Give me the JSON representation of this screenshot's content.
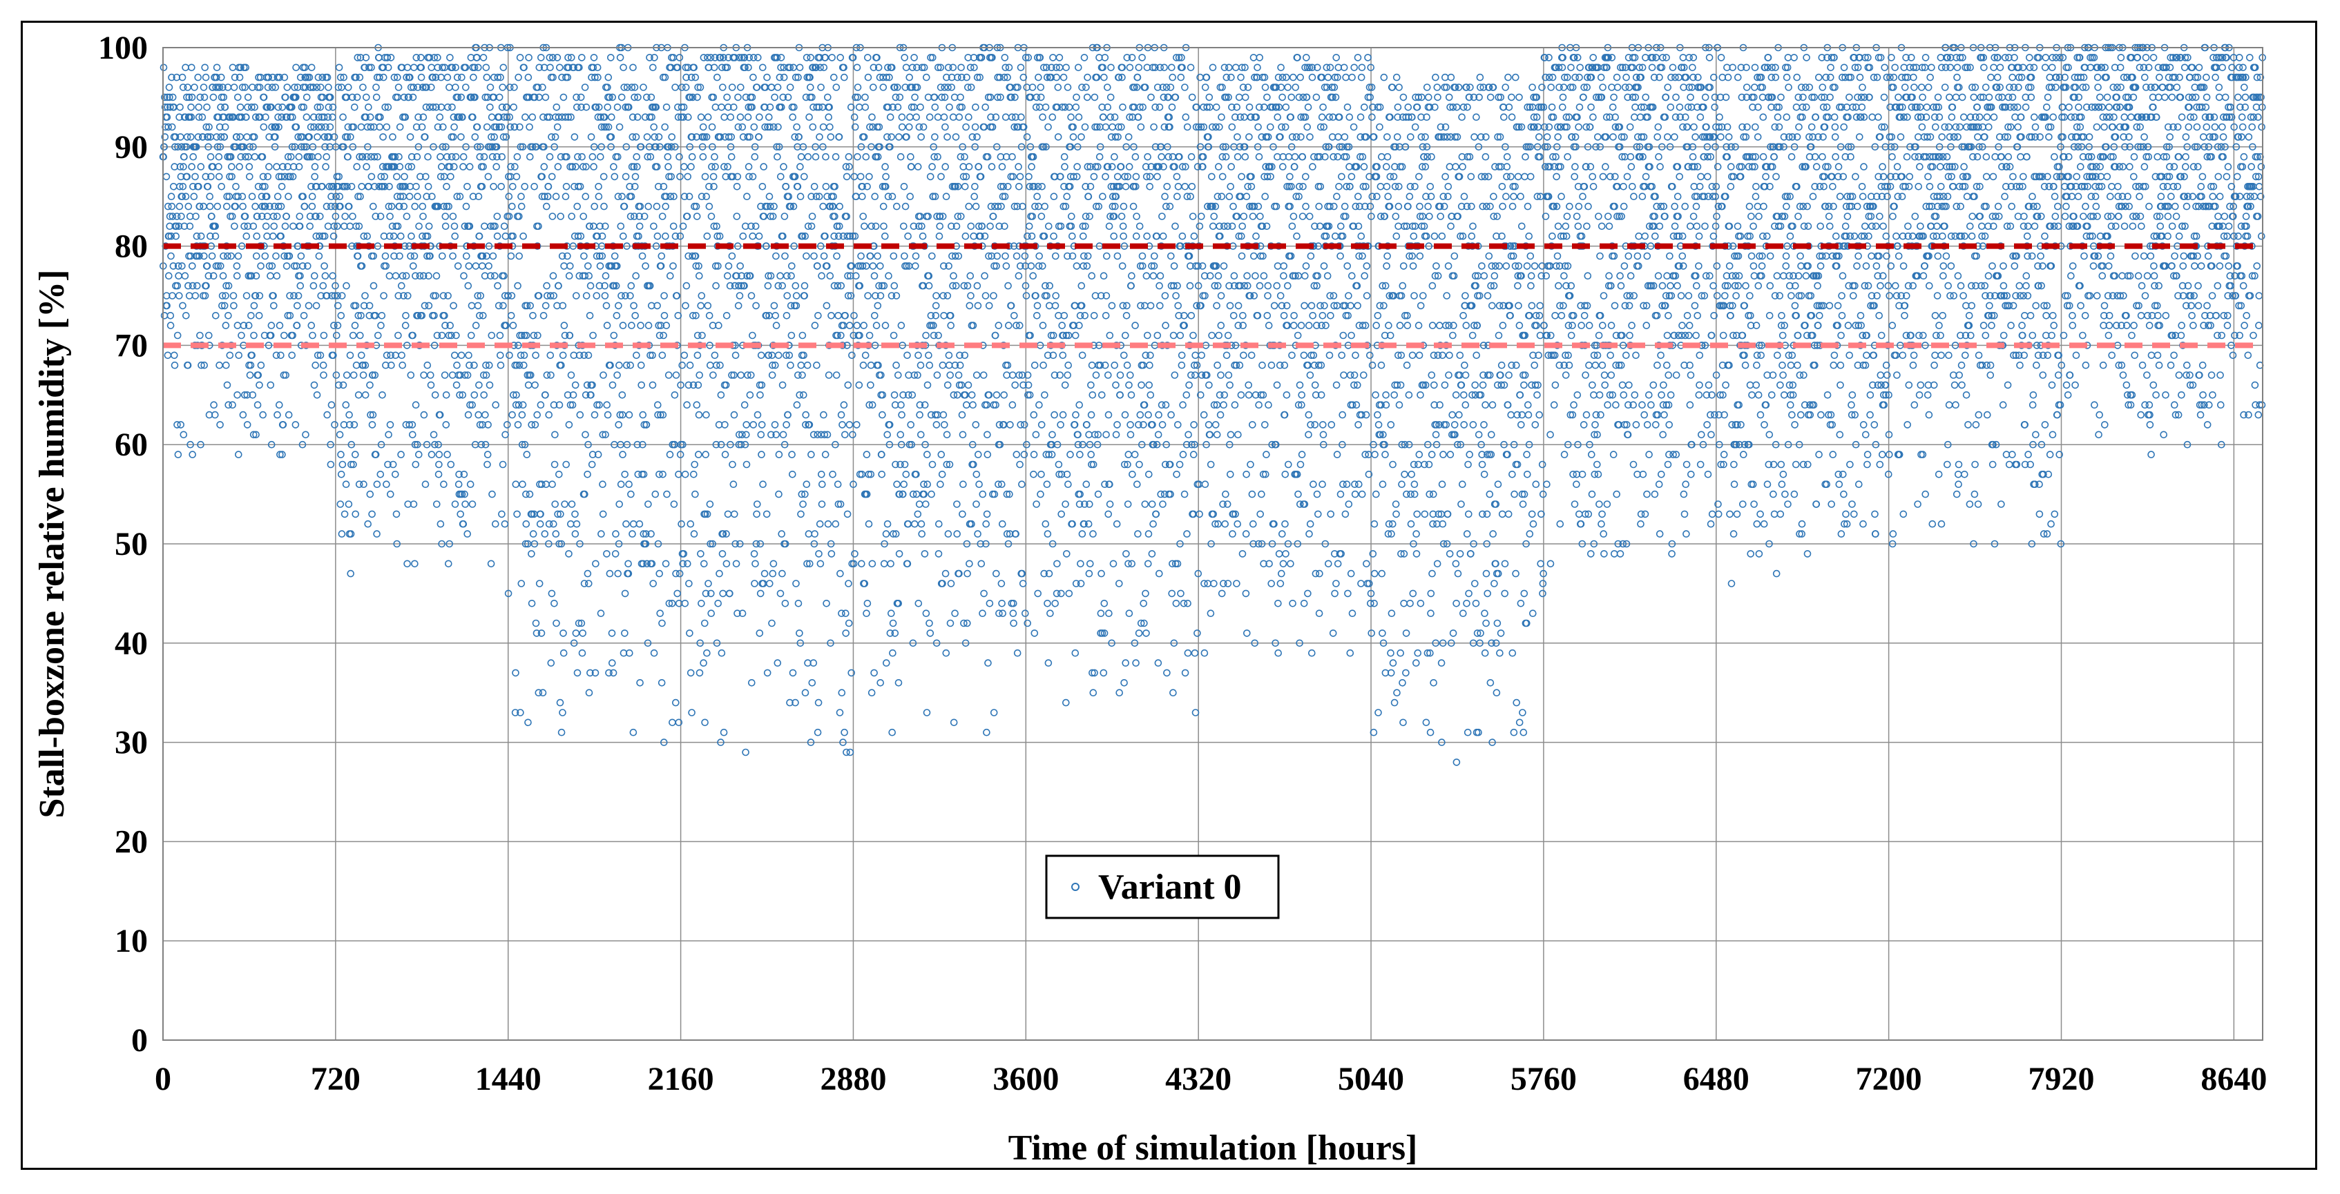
{
  "chart_data": {
    "type": "scatter",
    "xlabel": "Time of simulation [hours]",
    "ylabel": "Stall-boxzone relative humidity [%]",
    "xlim": [
      0,
      8760
    ],
    "ylim": [
      0,
      100
    ],
    "x_ticks": [
      "0",
      "720",
      "1440",
      "2160",
      "2880",
      "3600",
      "4320",
      "5040",
      "5760",
      "6480",
      "7200",
      "7920",
      "8640"
    ],
    "y_ticks": [
      "0",
      "10",
      "20",
      "30",
      "40",
      "50",
      "60",
      "70",
      "80",
      "90",
      "100"
    ],
    "grid": true,
    "legend": {
      "position": "bottom-center",
      "entries": [
        "Variant 0"
      ]
    },
    "series": [
      {
        "name": "Variant 0",
        "marker": "hollow-circle",
        "color": "#2E75B6",
        "sampling": "hourly",
        "x_start": 0,
        "x_end": 8760,
        "envelope_by_month": [
          {
            "x_range": [
              0,
              720
            ],
            "min": 57,
            "max": 98
          },
          {
            "x_range": [
              720,
              1440
            ],
            "min": 46,
            "max": 100
          },
          {
            "x_range": [
              1440,
              2160
            ],
            "min": 29,
            "max": 100
          },
          {
            "x_range": [
              2160,
              2880
            ],
            "min": 26,
            "max": 100
          },
          {
            "x_range": [
              2880,
              3600
            ],
            "min": 29,
            "max": 100
          },
          {
            "x_range": [
              3600,
              4320
            ],
            "min": 32,
            "max": 100
          },
          {
            "x_range": [
              4320,
              5040
            ],
            "min": 36,
            "max": 99
          },
          {
            "x_range": [
              5040,
              5760
            ],
            "min": 27,
            "max": 97
          },
          {
            "x_range": [
              5760,
              6480
            ],
            "min": 45,
            "max": 100
          },
          {
            "x_range": [
              6480,
              7200
            ],
            "min": 45,
            "max": 100
          },
          {
            "x_range": [
              7200,
              7920
            ],
            "min": 48,
            "max": 100
          },
          {
            "x_range": [
              7920,
              8760
            ],
            "min": 59,
            "max": 100
          }
        ]
      }
    ],
    "reference_lines": [
      {
        "y": 80,
        "color": "#C00000",
        "style": "dashed"
      },
      {
        "y": 70,
        "color": "#FF7C80",
        "style": "dashed"
      }
    ]
  }
}
